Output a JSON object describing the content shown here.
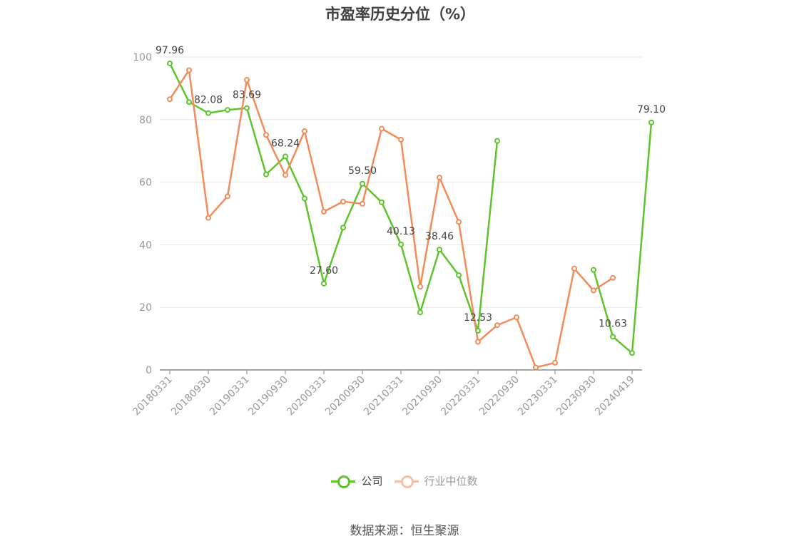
{
  "chart_data": {
    "type": "line",
    "title": "市盈率历史分位（%）",
    "ylim": [
      0,
      100
    ],
    "yticks": [
      0,
      20,
      40,
      60,
      80,
      100
    ],
    "x_tick_labels": [
      "20180331",
      "20180930",
      "20190331",
      "20190930",
      "20200331",
      "20200930",
      "20210331",
      "20210930",
      "20220331",
      "20220930",
      "20230331",
      "20230930",
      "20240419"
    ],
    "grid": true,
    "legend_position": "bottom-center",
    "series": [
      {
        "name": "公司",
        "color": "#5ec42e",
        "values": [
          97.96,
          85.6,
          82.08,
          83.1,
          83.69,
          62.5,
          68.24,
          54.8,
          27.6,
          45.5,
          59.5,
          53.6,
          40.13,
          18.4,
          38.46,
          30.3,
          12.53,
          73.2,
          null,
          null,
          null,
          null,
          32.0,
          10.63,
          5.4,
          79.1
        ],
        "labels": [
          "97.96",
          "",
          "82.08",
          "",
          "83.69",
          "",
          "68.24",
          "",
          "27.60",
          "",
          "59.50",
          "",
          "40.13",
          "",
          "38.46",
          "",
          "12.53",
          "",
          "",
          "",
          "",
          "",
          "",
          "10.63",
          "",
          "79.10"
        ]
      },
      {
        "name": "行业中位数",
        "color": "#f28c5a",
        "values": [
          86.5,
          95.8,
          48.6,
          55.5,
          92.7,
          75.1,
          62.3,
          76.3,
          50.6,
          53.8,
          53.1,
          77.1,
          73.6,
          26.6,
          61.5,
          47.3,
          9.0,
          14.3,
          16.8,
          0.8,
          2.3,
          32.4,
          25.4,
          29.4,
          null
        ]
      }
    ]
  },
  "legend": {
    "company": "公司",
    "industry": "行业中位数"
  },
  "source": "数据来源：恒生聚源"
}
